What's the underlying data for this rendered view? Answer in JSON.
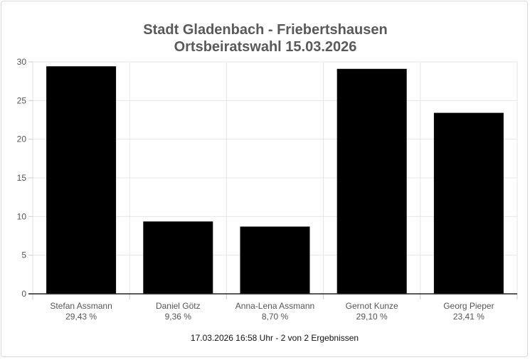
{
  "chart_data": {
    "type": "bar",
    "title": "Stadt Gladenbach - Friebertshausen",
    "subtitle": "Ortsbeiratswahl 15.03.2026",
    "categories": [
      "Stefan Assmann",
      "Daniel Götz",
      "Anna-Lena Assmann",
      "Gernot Kunze",
      "Georg Pieper"
    ],
    "value_labels": [
      "29,43 %",
      "9,36 %",
      "8,70 %",
      "29,10 %",
      "23,41 %"
    ],
    "values": [
      29.43,
      9.36,
      8.7,
      29.1,
      23.41
    ],
    "ylim": [
      0,
      30
    ],
    "yticks": [
      0,
      5,
      10,
      15,
      20,
      25,
      30
    ],
    "bar_color": "#000000",
    "grid": true,
    "xlabel": "",
    "ylabel": ""
  },
  "footer": "17.03.2026 16:58 Uhr - 2 von 2 Ergebnissen"
}
